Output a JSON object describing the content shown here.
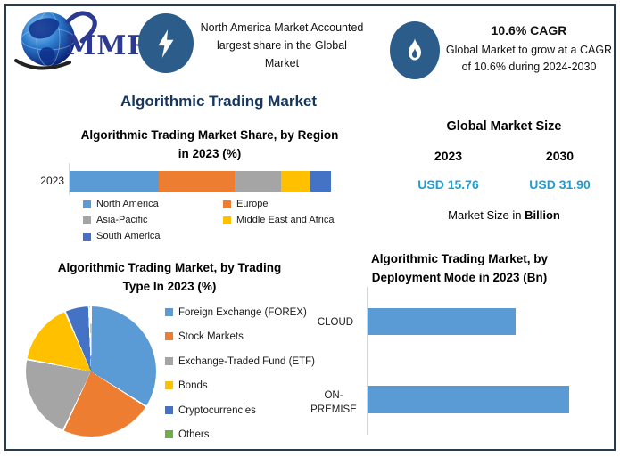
{
  "logo": {
    "text": "MMR"
  },
  "header": {
    "highlight_left": {
      "icon": "lightning-bolt",
      "text": "North America Market Accounted largest share in the Global Market"
    },
    "highlight_right": {
      "icon": "flame",
      "title": "10.6% CAGR",
      "text": "Global Market to grow at a CAGR of 10.6% during 2024-2030"
    }
  },
  "main_title": "Algorithmic Trading Market",
  "market_size": {
    "title": "Global Market Size",
    "columns": [
      {
        "year": "2023",
        "value": "USD 15.76"
      },
      {
        "year": "2030",
        "value": "USD 31.90"
      }
    ],
    "caption_prefix": "Market Size in ",
    "caption_bold": "Billion"
  },
  "colors": {
    "badge_blue": "#2B5C8A",
    "frame_navy": "#283C50",
    "title_navy": "#17365D",
    "value_blue": "#1F9CD2",
    "bar_blue": "#5B9BD5"
  },
  "chart_data": [
    {
      "type": "bar",
      "variant": "stacked-horizontal",
      "title": "Algorithmic Trading Market Share, by Region in 2023 (%)",
      "title_lines": [
        "Algorithmic Trading Market Share, by Region",
        "in 2023 (%)"
      ],
      "categories": [
        "2023"
      ],
      "unit": "%",
      "values_estimated_from_pixels": true,
      "series": [
        {
          "name": "North America",
          "color": "#5B9BD5",
          "value": 34
        },
        {
          "name": "Europe",
          "color": "#ED7D31",
          "value": 29
        },
        {
          "name": "Asia-Pacific",
          "color": "#A5A5A5",
          "value": 18
        },
        {
          "name": "Middle East and Africa",
          "color": "#FFC000",
          "value": 11
        },
        {
          "name": "South America",
          "color": "#4472C4",
          "value": 8
        }
      ],
      "legend_position": "bottom"
    },
    {
      "type": "pie",
      "title": "Algorithmic Trading Market, by Trading Type In 2023 (%)",
      "title_lines": [
        "Algorithmic Trading Market, by Trading",
        "Type In 2023 (%)"
      ],
      "unit": "%",
      "values_estimated_from_pixels": true,
      "slices": [
        {
          "name": "Foreign Exchange (FOREX)",
          "color": "#5B9BD5",
          "value": 34
        },
        {
          "name": "Stock Markets",
          "color": "#ED7D31",
          "value": 23
        },
        {
          "name": "Exchange-Traded Fund (ETF)",
          "color": "#A5A5A5",
          "value": 21
        },
        {
          "name": "Bonds",
          "color": "#FFC000",
          "value": 15.5
        },
        {
          "name": "Cryptocurrencies",
          "color": "#4472C4",
          "value": 6
        },
        {
          "name": "Others",
          "color": "#70AD47",
          "value": 0.5
        }
      ],
      "legend_position": "right"
    },
    {
      "type": "bar",
      "variant": "horizontal",
      "title": "Algorithmic Trading Market, by Deployment Mode in 2023 (Bn)",
      "title_lines": [
        "Algorithmic Trading Market, by",
        "Deployment Mode in 2023 (Bn)"
      ],
      "categories": [
        "CLOUD",
        "ON-PREMISE"
      ],
      "category_lines": [
        [
          "CLOUD"
        ],
        [
          "ON-",
          "PREMISE"
        ]
      ],
      "unit": "Bn",
      "values_estimated_from_pixels": true,
      "values": [
        6.7,
        9.1
      ],
      "bar_color": "#5B9BD5",
      "axis_labels_shown": false
    }
  ]
}
